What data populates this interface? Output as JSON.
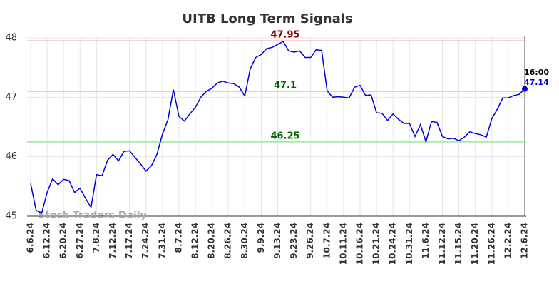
{
  "chart_data": {
    "type": "line",
    "title": "UITB Long Term Signals",
    "categories": [
      "6.6.24",
      null,
      null,
      "6.12.24",
      null,
      null,
      "6.20.24",
      null,
      null,
      "6.27.24",
      null,
      null,
      "7.8.24",
      null,
      null,
      "7.12.24",
      null,
      null,
      "7.17.24",
      null,
      null,
      "7.24.24",
      null,
      null,
      "7.31.24",
      null,
      null,
      "8.7.24",
      null,
      null,
      "8.12.24",
      null,
      null,
      "8.20.24",
      null,
      null,
      "8.26.24",
      null,
      null,
      "8.30.24",
      null,
      null,
      "9.9.24",
      null,
      null,
      "9.13.24",
      null,
      null,
      "9.23.24",
      null,
      null,
      "9.26.24",
      null,
      null,
      "10.7.24",
      null,
      null,
      "10.11.24",
      null,
      null,
      "10.16.24",
      null,
      null,
      "10.21.24",
      null,
      null,
      "10.24.24",
      null,
      null,
      "10.31.24",
      null,
      null,
      "11.6.24",
      null,
      null,
      "11.12.24",
      null,
      null,
      "11.15.24",
      null,
      null,
      "11.20.24",
      null,
      null,
      "11.26.24",
      null,
      null,
      "12.2.24",
      null,
      null,
      "12.6.24"
    ],
    "values": [
      45.55,
      45.1,
      45.05,
      45.4,
      45.63,
      45.53,
      45.62,
      45.6,
      45.4,
      45.47,
      45.3,
      45.15,
      45.7,
      45.68,
      45.94,
      46.04,
      45.93,
      46.09,
      46.1,
      45.99,
      45.88,
      45.76,
      45.85,
      46.04,
      46.38,
      46.62,
      47.13,
      46.68,
      46.6,
      46.72,
      46.83,
      47.0,
      47.1,
      47.15,
      47.24,
      47.27,
      47.24,
      47.23,
      47.17,
      47.02,
      47.48,
      47.67,
      47.72,
      47.82,
      47.84,
      47.89,
      47.94,
      47.78,
      47.76,
      47.78,
      47.67,
      47.67,
      47.8,
      47.79,
      47.11,
      47.0,
      47.01,
      47.0,
      46.99,
      47.17,
      47.2,
      47.03,
      47.04,
      46.74,
      46.73,
      46.61,
      46.72,
      46.63,
      46.56,
      46.56,
      46.34,
      46.54,
      46.25,
      46.59,
      46.58,
      46.34,
      46.3,
      46.31,
      46.27,
      46.33,
      46.42,
      46.39,
      46.37,
      46.33,
      46.64,
      46.8,
      46.99,
      46.99,
      47.03,
      47.05,
      47.14
    ],
    "color": "#0000dd",
    "ylim": [
      45,
      48
    ],
    "yticks": [
      45,
      46,
      47,
      48
    ],
    "grid": true,
    "hlines": [
      {
        "value": 47.95,
        "color": "#ffb3b3",
        "label_color": "#8b0000"
      },
      {
        "value": 47.1,
        "color": "#90ee90",
        "label_color": "#006400"
      },
      {
        "value": 46.25,
        "color": "#90ee90",
        "label_color": "#006400"
      }
    ],
    "annotation": "16:00",
    "watermark": "Stock Traders Daily"
  }
}
